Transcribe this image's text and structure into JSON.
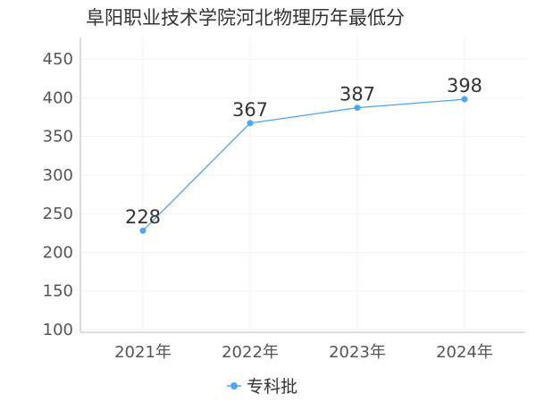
{
  "chart_data": {
    "type": "line",
    "title": "阜阳职业技术学院河北物理历年最低分",
    "categories": [
      "2021年",
      "2022年",
      "2023年",
      "2024年"
    ],
    "series": [
      {
        "name": "专科批",
        "values": [
          228,
          367,
          387,
          398
        ]
      }
    ],
    "y_ticks": [
      100,
      150,
      200,
      250,
      300,
      350,
      400,
      450
    ],
    "ylim": [
      100,
      475
    ],
    "grid": true,
    "legend": "bottom-center",
    "colors": {
      "series": "#4da6f0",
      "axis": "#bbbbbb",
      "grid": "#f2f2f2"
    }
  }
}
